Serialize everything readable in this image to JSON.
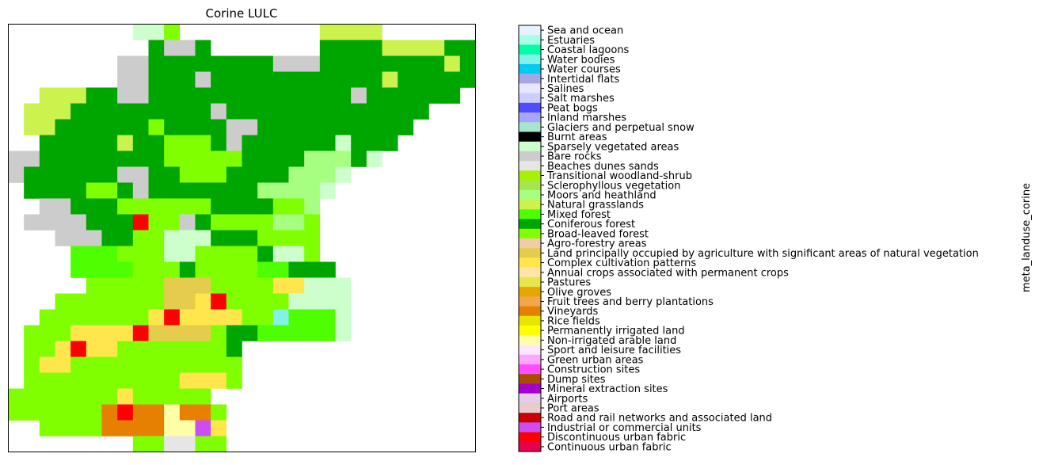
{
  "map": {
    "title": "Corine LULC",
    "colorbar_label": "meta_landuse_corine",
    "classes": [
      {
        "name": "Sea and ocean",
        "color": "#e6f2ff"
      },
      {
        "name": "Estuaries",
        "color": "#a6ffe6"
      },
      {
        "name": "Coastal lagoons",
        "color": "#00ffa6"
      },
      {
        "name": "Water bodies",
        "color": "#80f2e6"
      },
      {
        "name": "Water courses",
        "color": "#00ccf2"
      },
      {
        "name": "Intertidal flats",
        "color": "#a6a6e6"
      },
      {
        "name": "Salines",
        "color": "#e6e6ff"
      },
      {
        "name": "Salt marshes",
        "color": "#ccccff"
      },
      {
        "name": "Peat bogs",
        "color": "#4d4dff"
      },
      {
        "name": "Inland marshes",
        "color": "#a6a6ff"
      },
      {
        "name": "Glaciers and perpetual snow",
        "color": "#a6e6cc"
      },
      {
        "name": "Burnt areas",
        "color": "#000000"
      },
      {
        "name": "Sparsely vegetated areas",
        "color": "#ccffcc"
      },
      {
        "name": "Bare rocks",
        "color": "#cccccc"
      },
      {
        "name": "Beaches dunes sands",
        "color": "#e6e6e6"
      },
      {
        "name": "Transitional woodland-shrub",
        "color": "#a6f200"
      },
      {
        "name": "Sclerophyllous vegetation",
        "color": "#a6e64d"
      },
      {
        "name": "Moors and heathland",
        "color": "#a6ff80"
      },
      {
        "name": "Natural grasslands",
        "color": "#ccf24d"
      },
      {
        "name": "Mixed forest",
        "color": "#4dff00"
      },
      {
        "name": "Coniferous forest",
        "color": "#00a600"
      },
      {
        "name": "Broad-leaved forest",
        "color": "#80ff00"
      },
      {
        "name": "Agro-forestry areas",
        "color": "#f2cca6"
      },
      {
        "name": "Land principally occupied by agriculture with significant areas of natural vegetation",
        "color": "#e6cc4d"
      },
      {
        "name": "Complex cultivation patterns",
        "color": "#ffe64d"
      },
      {
        "name": "Annual crops associated with permanent crops",
        "color": "#ffe6a6"
      },
      {
        "name": "Pastures",
        "color": "#e6e64d"
      },
      {
        "name": "Olive groves",
        "color": "#e6a600"
      },
      {
        "name": "Fruit trees and berry plantations",
        "color": "#f2a64d"
      },
      {
        "name": "Vineyards",
        "color": "#e68000"
      },
      {
        "name": "Rice fields",
        "color": "#e6e600"
      },
      {
        "name": "Permanently irrigated land",
        "color": "#ffff00"
      },
      {
        "name": "Non-irrigated arable land",
        "color": "#ffffa8"
      },
      {
        "name": "Sport and leisure facilities",
        "color": "#ffe6ff"
      },
      {
        "name": "Green urban areas",
        "color": "#ffa6ff"
      },
      {
        "name": "Construction sites",
        "color": "#ff4dff"
      },
      {
        "name": "Dump sites",
        "color": "#a64d00"
      },
      {
        "name": "Mineral extraction sites",
        "color": "#a600cc"
      },
      {
        "name": "Airports",
        "color": "#e6cce6"
      },
      {
        "name": "Port areas",
        "color": "#e6cccc"
      },
      {
        "name": "Road and rail networks and associated land",
        "color": "#cc0000"
      },
      {
        "name": "Industrial or commercial units",
        "color": "#cc4df2"
      },
      {
        "name": "Discontinuous urban fabric",
        "color": "#ff0000"
      },
      {
        "name": "Continuous urban fabric",
        "color": "#e6004d"
      }
    ],
    "grid": [
      [
        null,
        null,
        null,
        null,
        null,
        null,
        null,
        null,
        12,
        12,
        21,
        null,
        null,
        null,
        null,
        null,
        null,
        null,
        null,
        null,
        18,
        18,
        18,
        18,
        null,
        null,
        null,
        null,
        null,
        null
      ],
      [
        null,
        null,
        null,
        null,
        null,
        null,
        null,
        null,
        null,
        20,
        13,
        13,
        20,
        null,
        null,
        null,
        null,
        null,
        null,
        null,
        20,
        20,
        20,
        20,
        18,
        18,
        18,
        18,
        20,
        20
      ],
      [
        null,
        null,
        null,
        null,
        null,
        null,
        null,
        13,
        13,
        20,
        20,
        20,
        20,
        20,
        20,
        20,
        20,
        13,
        13,
        13,
        20,
        20,
        20,
        20,
        20,
        20,
        20,
        20,
        18,
        20
      ],
      [
        null,
        null,
        null,
        null,
        null,
        null,
        null,
        13,
        13,
        20,
        20,
        20,
        13,
        20,
        20,
        20,
        20,
        20,
        20,
        20,
        20,
        20,
        20,
        20,
        18,
        20,
        20,
        20,
        20,
        20
      ],
      [
        null,
        null,
        18,
        18,
        18,
        20,
        20,
        13,
        13,
        20,
        20,
        20,
        20,
        20,
        20,
        20,
        20,
        20,
        20,
        20,
        20,
        20,
        13,
        20,
        20,
        20,
        20,
        20,
        20,
        null
      ],
      [
        null,
        18,
        18,
        18,
        20,
        20,
        20,
        20,
        20,
        20,
        20,
        20,
        20,
        13,
        20,
        20,
        20,
        20,
        20,
        20,
        20,
        20,
        20,
        20,
        20,
        20,
        20,
        null,
        null,
        null
      ],
      [
        null,
        18,
        18,
        20,
        20,
        20,
        20,
        20,
        20,
        21,
        20,
        20,
        20,
        20,
        13,
        13,
        20,
        20,
        20,
        20,
        20,
        20,
        20,
        20,
        20,
        20,
        null,
        null,
        null,
        null
      ],
      [
        null,
        null,
        20,
        20,
        20,
        20,
        20,
        18,
        20,
        20,
        21,
        21,
        21,
        20,
        13,
        20,
        20,
        20,
        20,
        20,
        20,
        12,
        20,
        20,
        20,
        null,
        null,
        null,
        null,
        null
      ],
      [
        13,
        13,
        20,
        20,
        20,
        20,
        20,
        20,
        20,
        20,
        21,
        21,
        21,
        21,
        21,
        20,
        20,
        20,
        20,
        17,
        17,
        17,
        20,
        12,
        null,
        null,
        null,
        null,
        null,
        null
      ],
      [
        13,
        20,
        20,
        20,
        20,
        20,
        20,
        13,
        13,
        20,
        20,
        21,
        21,
        21,
        20,
        20,
        20,
        20,
        17,
        17,
        17,
        12,
        null,
        null,
        null,
        null,
        null,
        null,
        null,
        null
      ],
      [
        null,
        20,
        20,
        20,
        20,
        21,
        21,
        20,
        13,
        20,
        20,
        20,
        20,
        20,
        20,
        20,
        17,
        17,
        17,
        17,
        12,
        null,
        null,
        null,
        null,
        null,
        null,
        null,
        null,
        null
      ],
      [
        null,
        null,
        13,
        13,
        20,
        20,
        20,
        21,
        21,
        21,
        21,
        21,
        21,
        20,
        20,
        20,
        20,
        21,
        21,
        17,
        null,
        null,
        null,
        null,
        null,
        null,
        null,
        null,
        null,
        null
      ],
      [
        null,
        13,
        13,
        13,
        13,
        20,
        20,
        20,
        42,
        21,
        21,
        13,
        20,
        21,
        21,
        21,
        21,
        17,
        17,
        21,
        null,
        null,
        null,
        null,
        null,
        null,
        null,
        null,
        null,
        null
      ],
      [
        null,
        null,
        null,
        13,
        13,
        13,
        20,
        20,
        21,
        21,
        12,
        12,
        12,
        20,
        20,
        20,
        21,
        21,
        21,
        21,
        null,
        null,
        null,
        null,
        null,
        null,
        null,
        null,
        null,
        null
      ],
      [
        null,
        null,
        null,
        null,
        19,
        19,
        19,
        21,
        21,
        21,
        12,
        12,
        21,
        21,
        21,
        21,
        20,
        12,
        12,
        21,
        null,
        null,
        null,
        null,
        null,
        null,
        null,
        null,
        null,
        null
      ],
      [
        null,
        null,
        null,
        null,
        19,
        19,
        19,
        19,
        21,
        21,
        21,
        20,
        21,
        21,
        21,
        21,
        19,
        19,
        20,
        20,
        20,
        null,
        null,
        null,
        null,
        null,
        null,
        null,
        null,
        null
      ],
      [
        null,
        null,
        null,
        null,
        null,
        21,
        21,
        21,
        21,
        21,
        23,
        23,
        23,
        21,
        21,
        21,
        21,
        24,
        24,
        12,
        12,
        12,
        null,
        null,
        null,
        null,
        null,
        null,
        null,
        null
      ],
      [
        null,
        null,
        null,
        21,
        21,
        21,
        21,
        21,
        21,
        21,
        23,
        23,
        24,
        42,
        21,
        21,
        21,
        21,
        12,
        12,
        12,
        12,
        null,
        null,
        null,
        null,
        null,
        null,
        null,
        null
      ],
      [
        null,
        null,
        21,
        21,
        21,
        21,
        21,
        21,
        21,
        24,
        42,
        24,
        24,
        24,
        24,
        21,
        21,
        3,
        19,
        19,
        19,
        12,
        null,
        null,
        null,
        null,
        null,
        null,
        null,
        null
      ],
      [
        null,
        21,
        21,
        21,
        24,
        24,
        24,
        24,
        42,
        23,
        23,
        23,
        23,
        21,
        20,
        20,
        19,
        19,
        19,
        19,
        19,
        12,
        null,
        null,
        null,
        null,
        null,
        null,
        null,
        null
      ],
      [
        null,
        21,
        21,
        24,
        42,
        24,
        24,
        21,
        21,
        21,
        21,
        21,
        21,
        21,
        20,
        null,
        null,
        null,
        null,
        null,
        null,
        null,
        null,
        null,
        null,
        null,
        null,
        null,
        null,
        null
      ],
      [
        null,
        21,
        24,
        24,
        21,
        21,
        21,
        21,
        21,
        21,
        21,
        21,
        21,
        21,
        21,
        null,
        null,
        null,
        null,
        null,
        null,
        null,
        null,
        null,
        null,
        null,
        null,
        null,
        null,
        null
      ],
      [
        null,
        21,
        21,
        21,
        21,
        21,
        21,
        21,
        21,
        21,
        21,
        24,
        24,
        24,
        21,
        null,
        null,
        null,
        null,
        null,
        null,
        null,
        null,
        null,
        null,
        null,
        null,
        null,
        null,
        null
      ],
      [
        21,
        21,
        21,
        21,
        21,
        21,
        21,
        24,
        21,
        21,
        21,
        21,
        21,
        null,
        null,
        null,
        null,
        null,
        null,
        null,
        null,
        null,
        null,
        null,
        null,
        null,
        null,
        null,
        null,
        null
      ],
      [
        21,
        21,
        21,
        21,
        21,
        21,
        29,
        42,
        29,
        29,
        32,
        29,
        29,
        21,
        null,
        null,
        null,
        null,
        null,
        null,
        null,
        null,
        null,
        null,
        null,
        null,
        null,
        null,
        null,
        null
      ],
      [
        null,
        null,
        21,
        21,
        21,
        21,
        29,
        29,
        29,
        29,
        32,
        32,
        41,
        24,
        null,
        null,
        null,
        null,
        null,
        null,
        null,
        null,
        null,
        null,
        null,
        null,
        null,
        null,
        null,
        null
      ],
      [
        null,
        null,
        null,
        null,
        null,
        null,
        null,
        null,
        21,
        21,
        14,
        14,
        21,
        21,
        null,
        null,
        null,
        null,
        null,
        null,
        null,
        null,
        null,
        null,
        null,
        null,
        null,
        null,
        null,
        null
      ]
    ]
  }
}
